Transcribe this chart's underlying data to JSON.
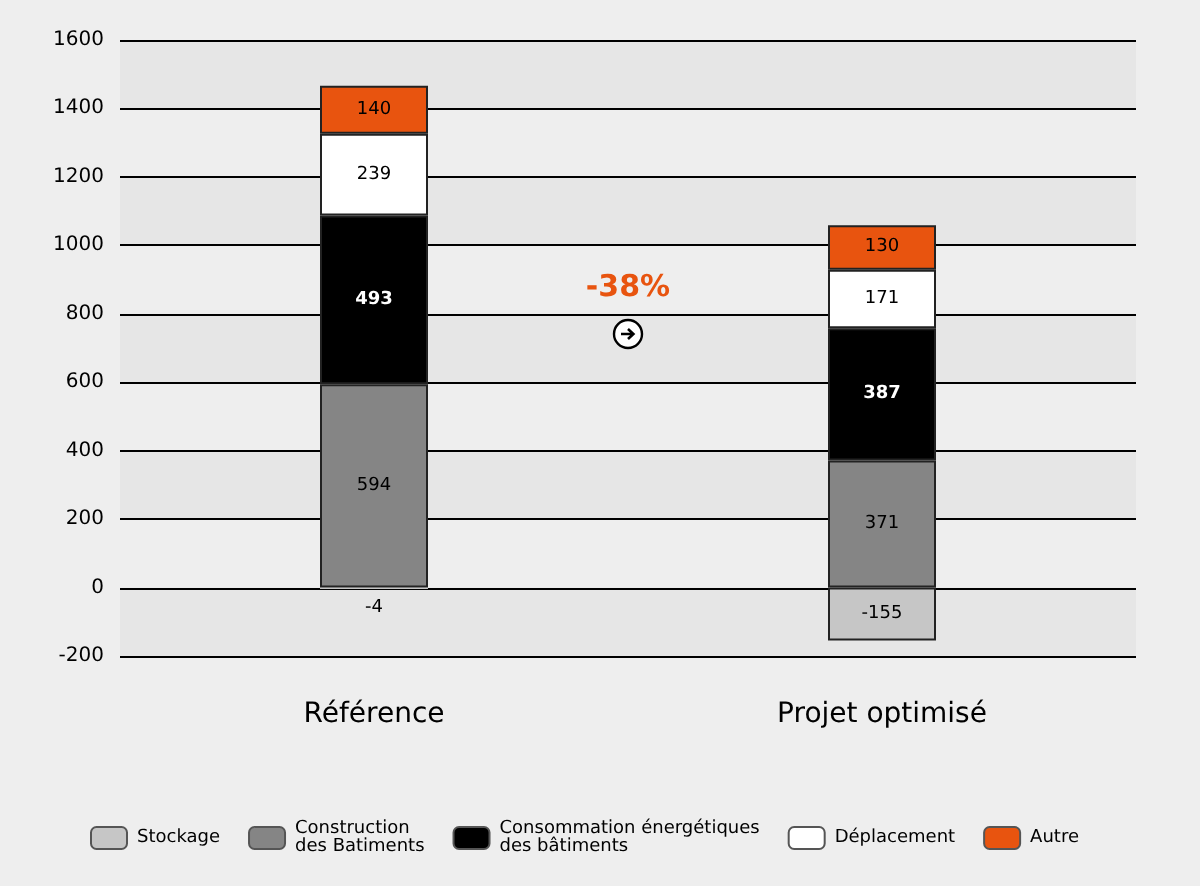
{
  "chart_data": {
    "type": "bar",
    "stacked": true,
    "categories": [
      "Référence",
      "Projet optimisé"
    ],
    "series": [
      {
        "name": "Stockage",
        "color": "#c6c6c6",
        "values": [
          -4,
          -155
        ]
      },
      {
        "name": "Construction des Batiments",
        "color": "#858585",
        "values": [
          594,
          371
        ]
      },
      {
        "name": "Consommation énergétiques des bâtiments",
        "color": "#000000",
        "values": [
          493,
          387
        ]
      },
      {
        "name": "Déplacement",
        "color": "#ffffff",
        "values": [
          239,
          171
        ]
      },
      {
        "name": "Autre",
        "color": "#e8540f",
        "values": [
          140,
          130
        ]
      }
    ],
    "ylim": [
      -200,
      1600
    ],
    "yticks": [
      -200,
      0,
      200,
      400,
      600,
      800,
      1000,
      1200,
      1400,
      1600
    ],
    "grid": "y",
    "legend": "bottom",
    "data_labels": true,
    "annotations": [
      "-38%"
    ]
  }
}
